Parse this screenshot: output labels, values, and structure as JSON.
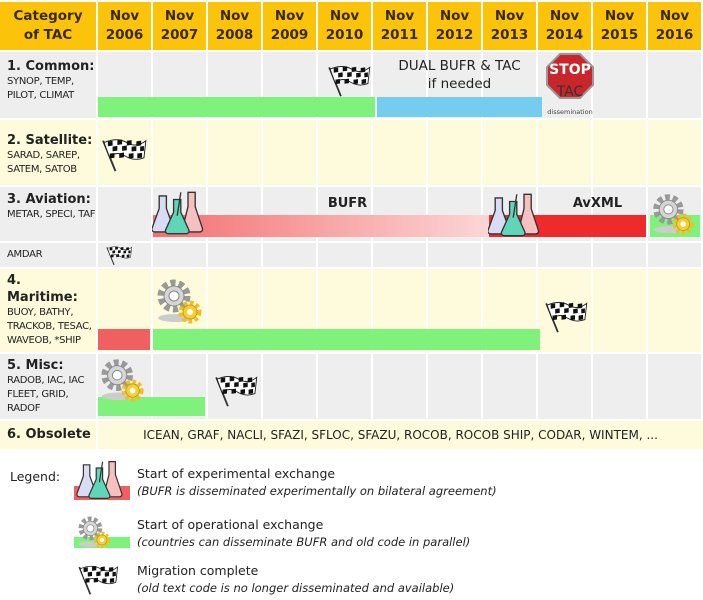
{
  "header": {
    "category": "Category of TAC",
    "years": [
      "Nov 2006",
      "Nov 2007",
      "Nov 2008",
      "Nov 2009",
      "Nov 2010",
      "Nov 2011",
      "Nov 2012",
      "Nov 2013",
      "Nov 2014",
      "Nov 2015",
      "Nov 2016"
    ]
  },
  "rows": {
    "common": {
      "title": "1. Common:",
      "codes": "SYNOP, TEMP, PILOT, CLIMAT",
      "dual_label_1": "DUAL BUFR & TAC",
      "dual_label_2": "if needed",
      "stop_sign": "STOP",
      "stop_tac": "TAC",
      "stop_caption": "dissemination"
    },
    "satellite": {
      "title": "2. Satellite:",
      "codes": "SARAD, SAREP, SATEM, SATOB"
    },
    "aviation": {
      "title": "3. Aviation:",
      "codes": "METAR, SPECI, TAF",
      "bufr_label": "BUFR",
      "avxml_label": "AvXML"
    },
    "amdar": {
      "codes": "AMDAR"
    },
    "maritime": {
      "title": "4. Maritime:",
      "codes": "BUOY, BATHY, TRACKOB, TESAC, WAVEOB, *SHIP"
    },
    "misc": {
      "title": "5. Misc:",
      "codes": "RADOB, IAC, IAC FLEET, GRID, RADOF"
    },
    "obsolete": {
      "title": "6. Obsolete",
      "codes": "ICEAN, GRAF, NACLI, SFAZI, SFLOC, SFAZU, ROCOB, ROCOB SHIP, CODAR, WINTEM, ..."
    }
  },
  "legend": {
    "title": "Legend:",
    "items": [
      {
        "label": "Start of experimental exchange",
        "note": "(BUFR is disseminated experimentally on bilateral agreement)",
        "icon": "flasks-icon",
        "color": "#f06060"
      },
      {
        "label": "Start of operational exchange",
        "note": "(countries can disseminate BUFR and old code in parallel)",
        "icon": "gears-icon",
        "color": "#7ef27a"
      },
      {
        "label": "Migration complete",
        "note": "(old text code is no longer disseminated and available)",
        "icon": "checkered-flag-icon"
      }
    ]
  },
  "colors": {
    "header": "#fcc30b",
    "operational": "#7ef27a",
    "experimental": "#f06060",
    "dual": "#74cdef",
    "avxml": "#ee2a2a"
  }
}
